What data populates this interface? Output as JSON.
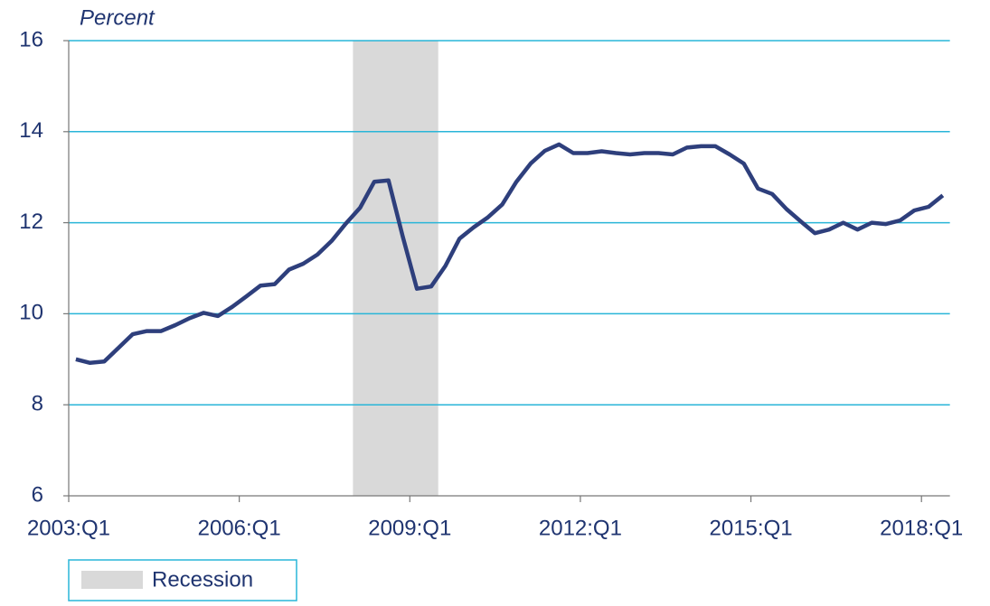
{
  "chart_data": {
    "type": "line",
    "y_axis_label": "Percent",
    "categories": [
      "2003:Q1",
      null,
      null,
      null,
      null,
      null,
      null,
      null,
      null,
      null,
      null,
      null,
      "2006:Q1",
      null,
      null,
      null,
      null,
      null,
      null,
      null,
      null,
      null,
      null,
      null,
      "2009:Q1",
      null,
      null,
      null,
      null,
      null,
      null,
      null,
      null,
      null,
      null,
      null,
      "2012:Q1",
      null,
      null,
      null,
      null,
      null,
      null,
      null,
      null,
      null,
      null,
      null,
      "2015:Q1",
      null,
      null,
      null,
      null,
      null,
      null,
      null,
      null,
      null,
      null,
      null,
      "2018:Q1",
      null
    ],
    "series": [
      {
        "color": "#2e3f7c",
        "values": [
          9.0,
          8.92,
          8.95,
          9.25,
          9.55,
          9.62,
          9.62,
          9.75,
          9.9,
          10.02,
          9.95,
          10.15,
          10.38,
          10.62,
          10.65,
          10.97,
          11.1,
          11.3,
          11.6,
          11.98,
          12.33,
          12.9,
          12.93,
          11.7,
          10.55,
          10.6,
          11.05,
          11.65,
          11.9,
          12.12,
          12.4,
          12.9,
          13.3,
          13.58,
          13.72,
          13.53,
          13.53,
          13.57,
          13.53,
          13.5,
          13.53,
          13.53,
          13.5,
          13.65,
          13.68,
          13.68,
          13.5,
          13.3,
          12.75,
          12.63,
          12.3,
          12.03,
          11.77,
          11.85,
          12.0,
          11.85,
          12.0,
          11.97,
          12.05,
          12.27,
          12.35,
          12.6
        ]
      }
    ],
    "recession": {
      "label": "Recession",
      "start_index": 20,
      "end_index": 25,
      "color": "#d9d9d9"
    },
    "ylim": [
      6,
      16
    ],
    "yticks": [
      6,
      8,
      10,
      12,
      14,
      16
    ],
    "grid": true,
    "grid_color": "#29b5d8"
  }
}
